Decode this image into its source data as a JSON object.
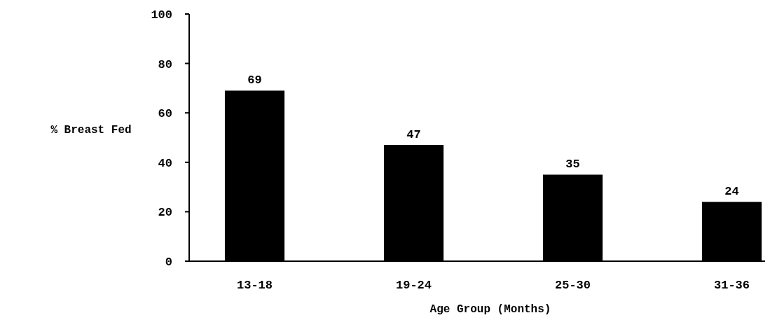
{
  "chart_data": {
    "type": "bar",
    "xlabel": "Age Group (Months)",
    "ylabel": "% Breast Fed",
    "categories": [
      "13-18",
      "19-24",
      "25-30",
      "31-36"
    ],
    "values": [
      69,
      47,
      35,
      24
    ],
    "color": "#000000",
    "ylim": [
      0,
      100
    ],
    "yticks": [
      0,
      20,
      40,
      60,
      80,
      100
    ],
    "grid": false,
    "data_labels": true
  }
}
